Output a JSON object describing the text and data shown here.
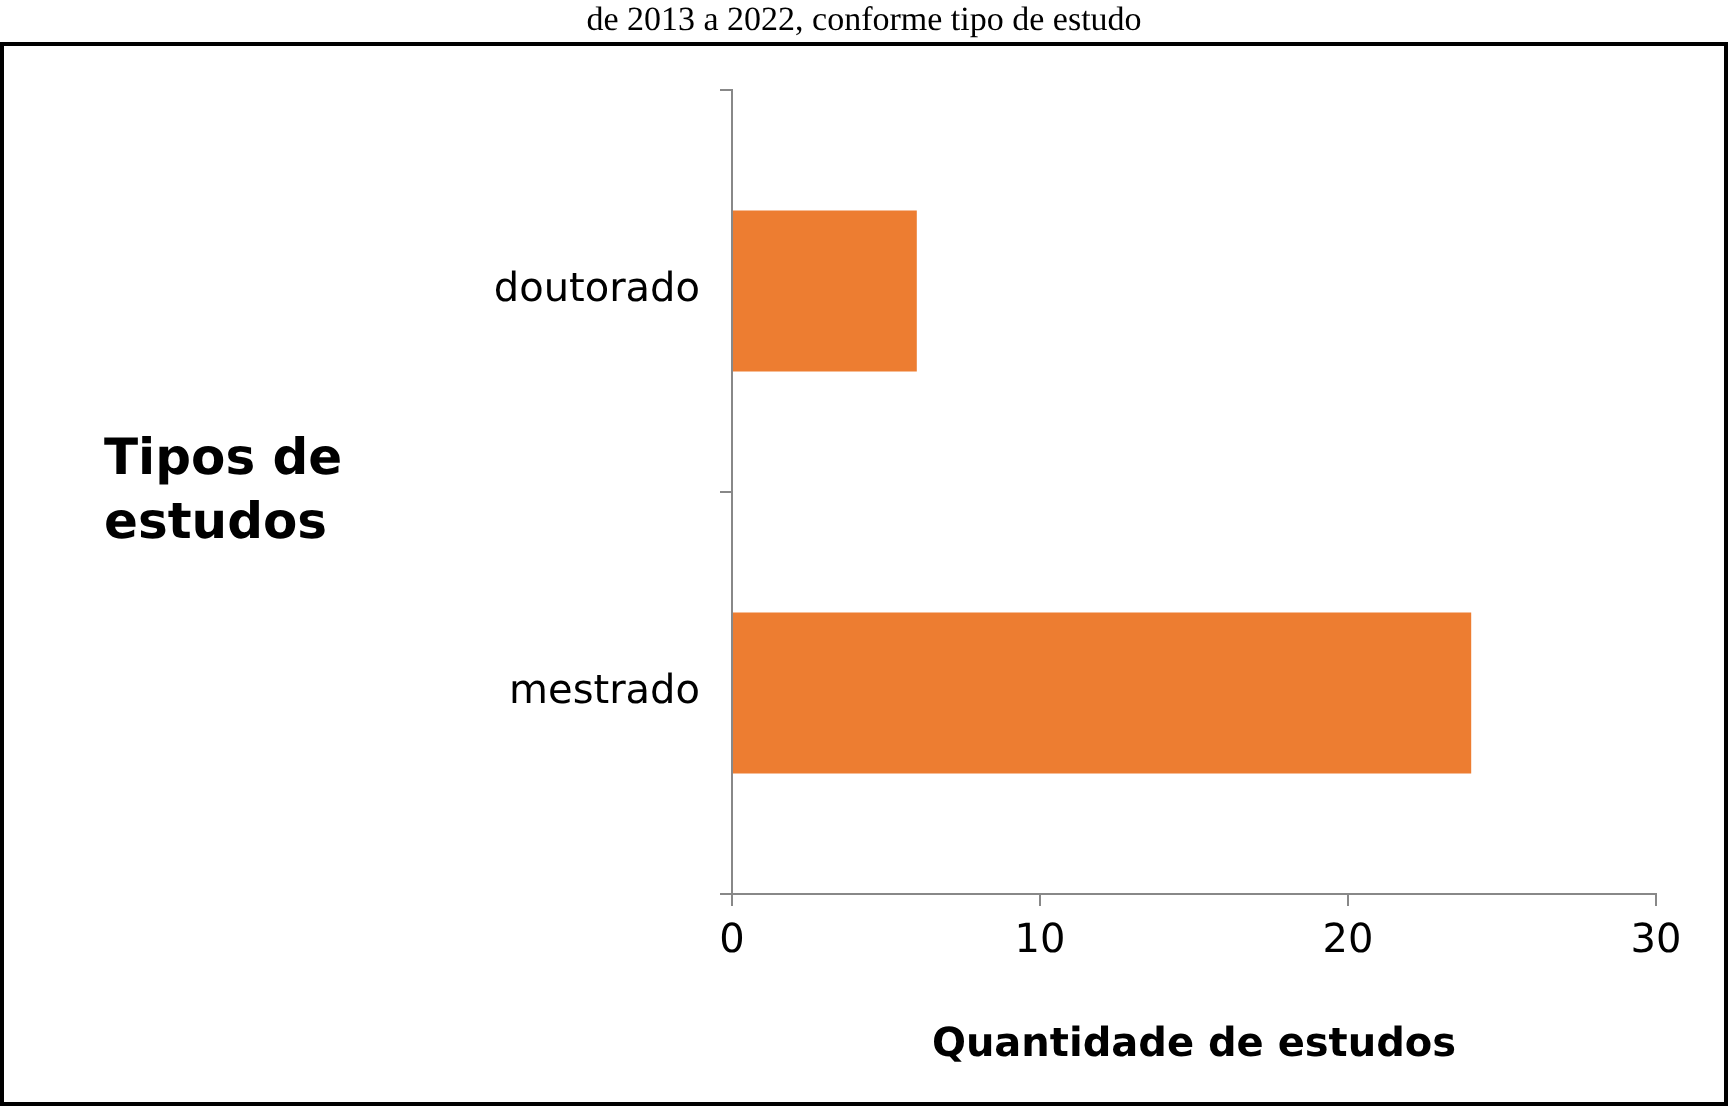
{
  "chart_data": {
    "type": "bar",
    "orientation": "horizontal",
    "title": "de 2013 a 2022, conforme tipo de estudo",
    "xlabel": "Quantidade de estudos",
    "ylabel": "Tipos de estudos",
    "categories": [
      "doutorado",
      "mestrado"
    ],
    "series": [
      {
        "color": "#ed7d31",
        "values": [
          6,
          24
        ]
      }
    ],
    "xlim": [
      0,
      30
    ],
    "xticks": [
      0,
      10,
      20,
      30
    ],
    "grid": false,
    "legend": false
  }
}
